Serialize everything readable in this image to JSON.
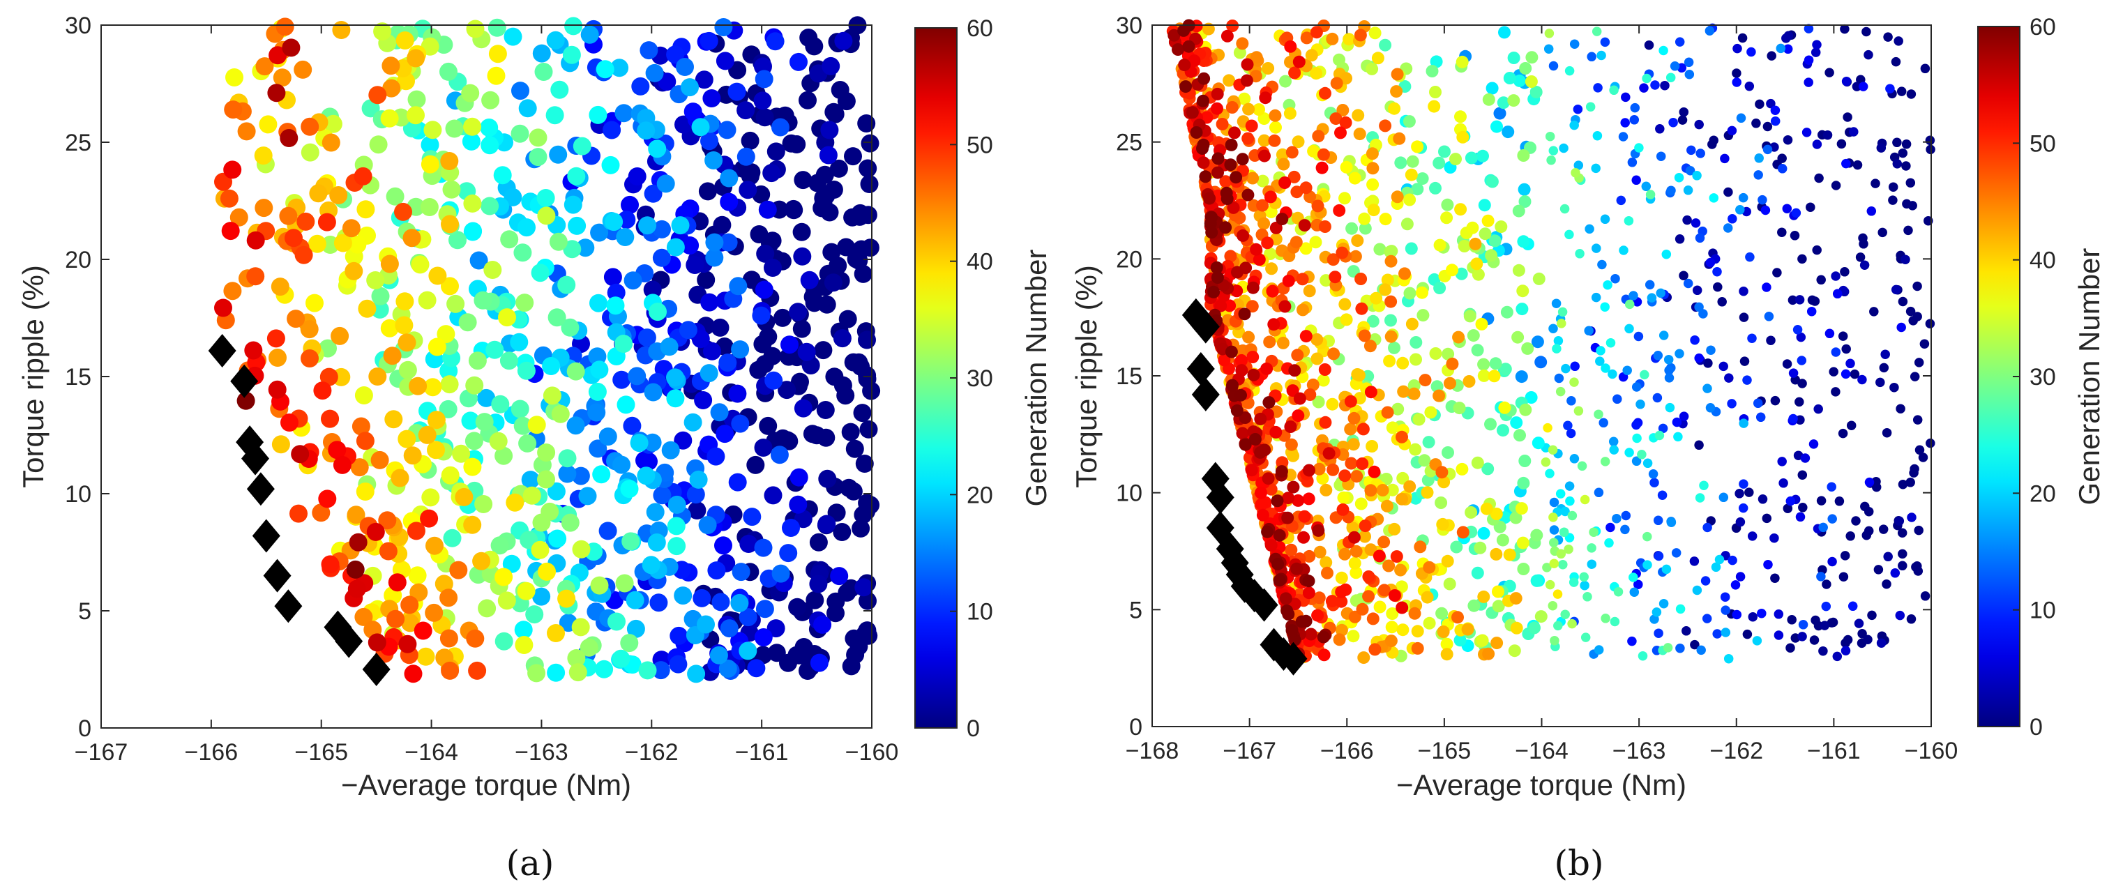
{
  "chart_data": [
    {
      "type": "scatter",
      "panel_label": "(a)",
      "xlabel": "−Average torque (Nm)",
      "ylabel": "Torque ripple (%)",
      "xlim": [
        -167,
        -160
      ],
      "ylim": [
        0,
        30
      ],
      "xticks": [
        -167,
        -166,
        -165,
        -164,
        -163,
        -162,
        -161,
        -160
      ],
      "yticks": [
        0,
        5,
        10,
        15,
        20,
        25,
        30
      ],
      "xtick_labels": [
        "−167",
        "−166",
        "−165",
        "−164",
        "−163",
        "−162",
        "−161",
        "−160"
      ],
      "ytick_labels": [
        "0",
        "5",
        "10",
        "15",
        "20",
        "25",
        "30"
      ],
      "colorbar": {
        "label": "Generation Number",
        "range": [
          0,
          60
        ],
        "ticks": [
          0,
          10,
          20,
          30,
          40,
          50,
          60
        ],
        "tick_labels": [
          "0",
          "10",
          "20",
          "30",
          "40",
          "50",
          "60"
        ],
        "colormap": "jet"
      },
      "marker_color": "#000000",
      "pareto_front": [
        {
          "x": -165.9,
          "y": 16.1
        },
        {
          "x": -165.7,
          "y": 14.8
        },
        {
          "x": -165.65,
          "y": 12.2
        },
        {
          "x": -165.6,
          "y": 11.5
        },
        {
          "x": -165.55,
          "y": 10.2
        },
        {
          "x": -165.5,
          "y": 8.2
        },
        {
          "x": -165.4,
          "y": 6.5
        },
        {
          "x": -165.3,
          "y": 5.2
        },
        {
          "x": -164.85,
          "y": 4.3
        },
        {
          "x": -164.75,
          "y": 3.7
        },
        {
          "x": -164.5,
          "y": 2.5
        }
      ],
      "scatter": {
        "x_range": [
          -165.95,
          -160.0
        ],
        "y_range": [
          2.3,
          30.0
        ],
        "point_count": 1100,
        "note": "Generation numbers 0-60; later generations concentrate near the Pareto front at the lower-left"
      }
    },
    {
      "type": "scatter",
      "panel_label": "(b)",
      "xlabel": "−Average torque (Nm)",
      "ylabel": "Torque ripple (%)",
      "xlim": [
        -168,
        -160
      ],
      "ylim": [
        0,
        30
      ],
      "xticks": [
        -168,
        -167,
        -166,
        -165,
        -164,
        -163,
        -162,
        -161,
        -160
      ],
      "yticks": [
        0,
        5,
        10,
        15,
        20,
        25,
        30
      ],
      "xtick_labels": [
        "−168",
        "−167",
        "−166",
        "−165",
        "−164",
        "−163",
        "−162",
        "−161",
        "−160"
      ],
      "ytick_labels": [
        "0",
        "5",
        "10",
        "15",
        "20",
        "25",
        "30"
      ],
      "colorbar": {
        "label": "Generation Number",
        "range": [
          0,
          60
        ],
        "ticks": [
          0,
          10,
          20,
          30,
          40,
          50,
          60
        ],
        "tick_labels": [
          "0",
          "10",
          "20",
          "30",
          "40",
          "50",
          "60"
        ],
        "colormap": "jet"
      },
      "marker_color": "#000000",
      "pareto_front": [
        {
          "x": -167.55,
          "y": 17.6
        },
        {
          "x": -167.45,
          "y": 17.1
        },
        {
          "x": -167.5,
          "y": 15.3
        },
        {
          "x": -167.45,
          "y": 14.2
        },
        {
          "x": -167.35,
          "y": 10.6
        },
        {
          "x": -167.3,
          "y": 9.8
        },
        {
          "x": -167.3,
          "y": 8.5
        },
        {
          "x": -167.2,
          "y": 7.6
        },
        {
          "x": -167.15,
          "y": 7.0
        },
        {
          "x": -167.1,
          "y": 6.5
        },
        {
          "x": -167.05,
          "y": 6.0
        },
        {
          "x": -166.95,
          "y": 5.6
        },
        {
          "x": -166.85,
          "y": 5.2
        },
        {
          "x": -166.75,
          "y": 3.5
        },
        {
          "x": -166.65,
          "y": 3.1
        },
        {
          "x": -166.55,
          "y": 2.9
        }
      ],
      "scatter": {
        "x_range": [
          -167.45,
          -160.0
        ],
        "y_range": [
          2.9,
          30.0
        ],
        "point_count": 1900,
        "note": "Generation numbers 0-60; later generations concentrate near the Pareto front at the lower-left"
      }
    }
  ]
}
